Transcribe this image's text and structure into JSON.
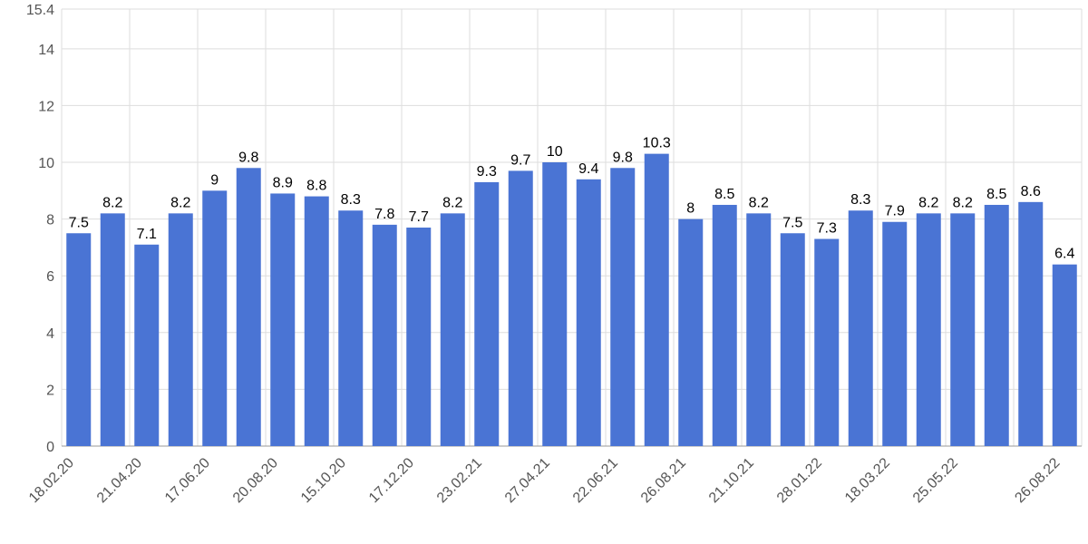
{
  "chart_data": {
    "type": "bar",
    "categories": [
      "18.02.20",
      null,
      "21.04.20",
      null,
      "17.06.20",
      null,
      "20.08.20",
      null,
      "15.10.20",
      null,
      "17.12.20",
      null,
      "23.02.21",
      null,
      "27.04.21",
      null,
      "22.06.21",
      null,
      "26.08.21",
      null,
      "21.10.21",
      null,
      "28.01.22",
      null,
      "18.03.22",
      null,
      "25.05.22",
      null,
      null,
      "26.08.22"
    ],
    "values": [
      7.5,
      8.2,
      7.1,
      8.2,
      9,
      9.8,
      8.9,
      8.8,
      8.3,
      7.8,
      7.7,
      8.2,
      9.3,
      9.7,
      10,
      9.4,
      9.8,
      10.3,
      8,
      8.5,
      8.2,
      7.5,
      7.3,
      8.3,
      7.9,
      8.2,
      8.2,
      8.5,
      8.6,
      6.4
    ],
    "color": "#4a74d4",
    "ylim": [
      0,
      15.4
    ],
    "yticks": [
      0,
      2,
      4,
      6,
      8,
      10,
      12,
      14,
      15.4
    ],
    "grid": true
  }
}
